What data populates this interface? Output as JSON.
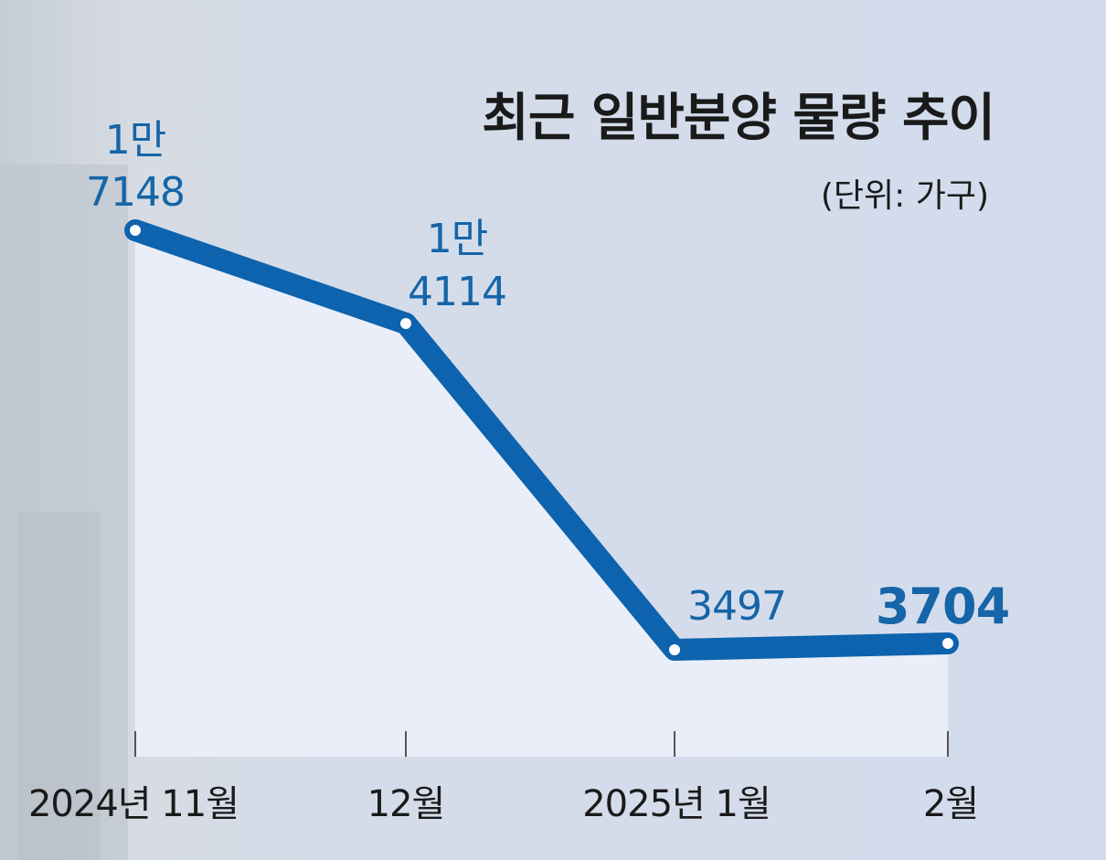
{
  "chart_data": {
    "type": "line",
    "title": "최근 일반분양 물량 추이",
    "subtitle": "(단위: 가구)",
    "categories": [
      "2024년 11월",
      "12월",
      "2025년 1월",
      "2월"
    ],
    "values": [
      17148,
      14114,
      3497,
      3704
    ],
    "data_labels": [
      [
        "1만",
        "7148"
      ],
      [
        "1만",
        "4114"
      ],
      [
        "3497"
      ],
      [
        "3704"
      ]
    ],
    "ylim": [
      0,
      20000
    ],
    "grid": false,
    "legend": "none",
    "colors": {
      "line": "#0d63ad",
      "label": "#1565a8",
      "area": "#e9eef8",
      "background": "#d5ddec"
    }
  }
}
